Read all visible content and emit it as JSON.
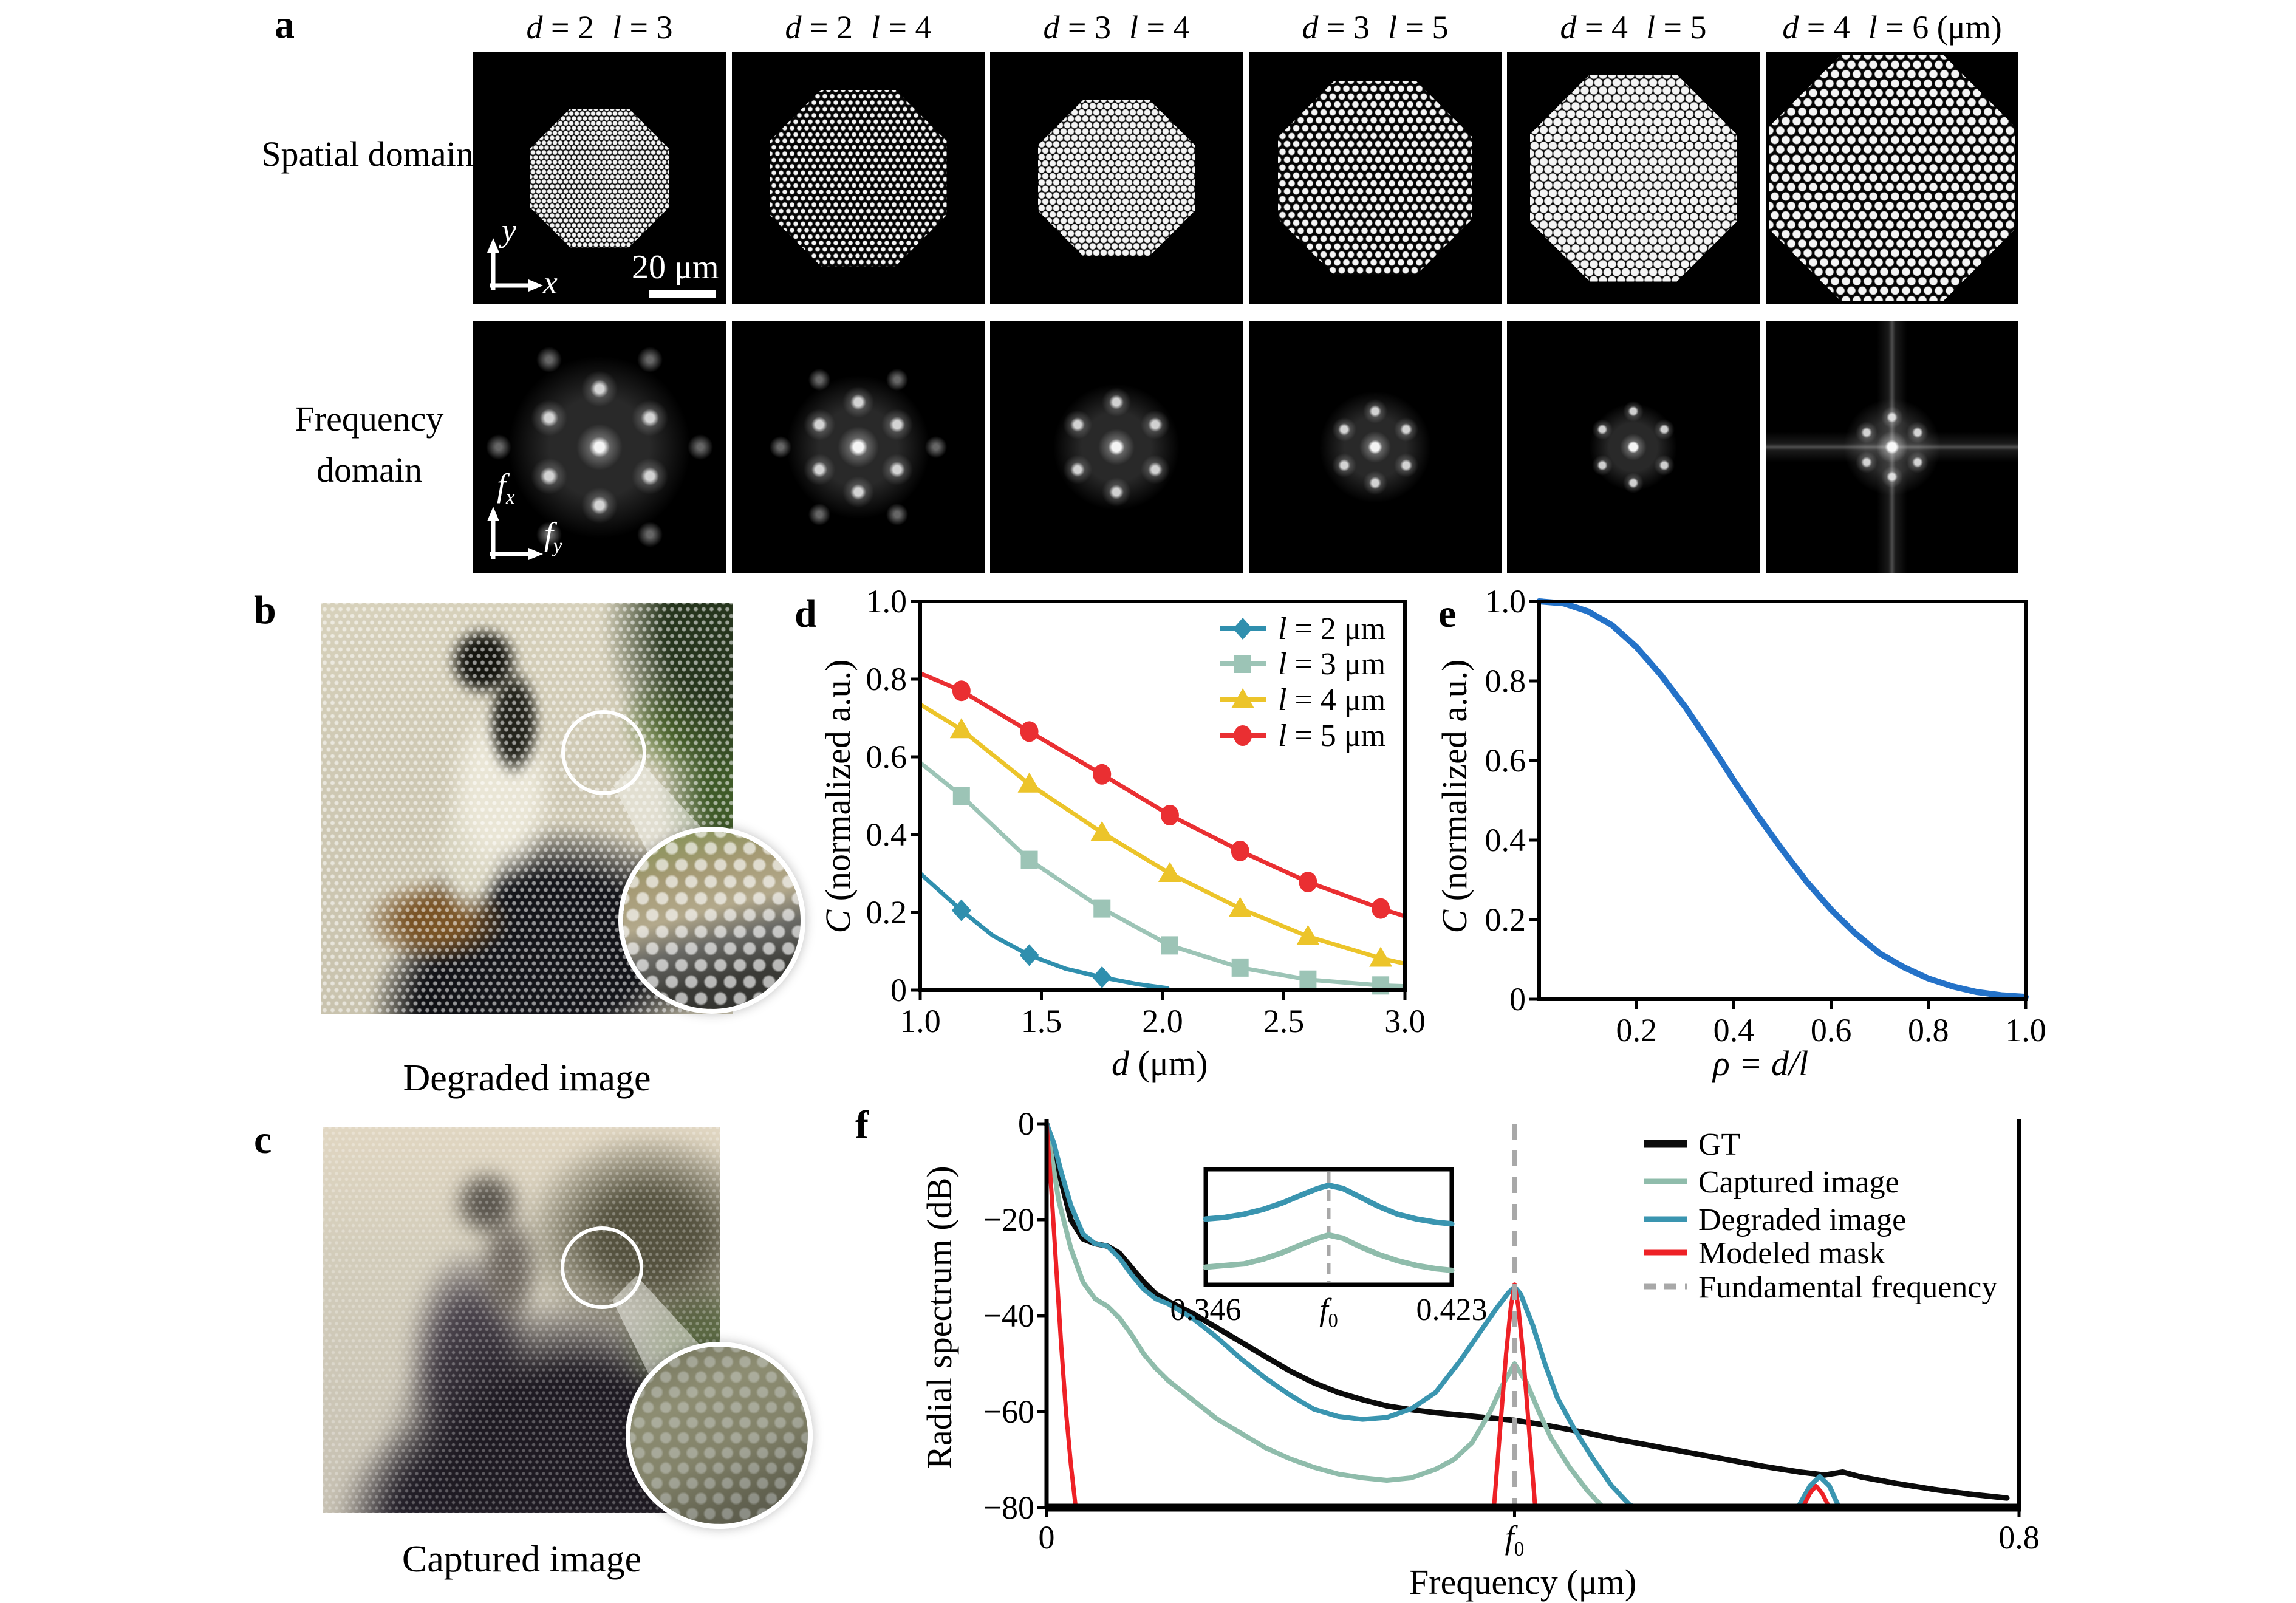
{
  "figure": {
    "panel_a": {
      "letter": "a",
      "columns": [
        {
          "d": "2",
          "l": "3",
          "suffix": ""
        },
        {
          "d": "2",
          "l": "4",
          "suffix": ""
        },
        {
          "d": "3",
          "l": "4",
          "suffix": ""
        },
        {
          "d": "3",
          "l": "5",
          "suffix": ""
        },
        {
          "d": "4",
          "l": "5",
          "suffix": ""
        },
        {
          "d": "4",
          "l": "6",
          "suffix": " (μm)"
        }
      ],
      "row_labels": [
        "Spatial domain",
        "Frequency domain"
      ],
      "spatial_axis_v": "y",
      "spatial_axis_h": "x",
      "freq_axis_v_base": "f",
      "freq_axis_v_sub": "x",
      "freq_axis_h_base": "f",
      "freq_axis_h_sub": "y",
      "scale_bar_label": "20 μm"
    },
    "panel_b": {
      "letter": "b",
      "caption": "Degraded image"
    },
    "panel_c": {
      "letter": "c",
      "caption": "Captured image"
    },
    "panel_d": {
      "letter": "d",
      "xlabel_var": "d",
      "xlabel_rest": " (μm)",
      "ylabel_var": "C",
      "ylabel_rest": " (normalized a.u.)"
    },
    "panel_e": {
      "letter": "e",
      "xlabel_var": "ρ = d/l",
      "xlabel_rest": "",
      "ylabel_var": "C",
      "ylabel_rest": " (normalized a.u.)"
    },
    "panel_f": {
      "letter": "f",
      "xlabel": "Frequency (μm)",
      "ylabel": "Radial spectrum (dB)"
    }
  },
  "chart_data": [
    {
      "id": "d",
      "type": "line",
      "xlabel": "d (μm)",
      "ylabel": "C (normalized a.u.)",
      "xlim": [
        1.0,
        3.0
      ],
      "ylim": [
        0,
        1.0
      ],
      "grid": false,
      "legend_position": "top-right",
      "xtick_vals": [
        1.0,
        1.5,
        2.0,
        2.5,
        3.0
      ],
      "xticks": [
        "1.0",
        "1.5",
        "2.0",
        "2.5",
        "3.0"
      ],
      "ytick_vals": [
        0,
        0.2,
        0.4,
        0.6,
        0.8,
        1.0
      ],
      "yticks": [
        "0",
        "0.2",
        "0.4",
        "0.6",
        "0.8",
        "1.0"
      ],
      "series": [
        {
          "name": "l = 2 μm",
          "color": "#2f8fae",
          "marker": "diamond",
          "x": [
            1.0,
            1.17,
            1.3,
            1.45,
            1.6,
            1.75,
            1.9,
            2.02
          ],
          "y": [
            0.3,
            0.205,
            0.14,
            0.09,
            0.055,
            0.033,
            0.015,
            0.005
          ],
          "mx": [
            1.17,
            1.45,
            1.75
          ],
          "my": [
            0.205,
            0.09,
            0.033
          ]
        },
        {
          "name": "l = 3 μm",
          "color": "#9cc4b6",
          "marker": "square",
          "x": [
            1.0,
            1.17,
            1.45,
            1.75,
            2.03,
            2.32,
            2.6,
            2.9,
            3.0
          ],
          "y": [
            0.585,
            0.5,
            0.335,
            0.21,
            0.115,
            0.058,
            0.027,
            0.012,
            0.01
          ],
          "mx": [
            1.17,
            1.45,
            1.75,
            2.03,
            2.32,
            2.6,
            2.9
          ],
          "my": [
            0.5,
            0.335,
            0.21,
            0.115,
            0.058,
            0.027,
            0.012
          ]
        },
        {
          "name": "l = 4 μm",
          "color": "#ecc42a",
          "marker": "triangle",
          "x": [
            1.0,
            1.17,
            1.45,
            1.75,
            2.03,
            2.32,
            2.6,
            2.9,
            3.0
          ],
          "y": [
            0.735,
            0.67,
            0.53,
            0.405,
            0.3,
            0.21,
            0.138,
            0.082,
            0.068
          ],
          "mx": [
            1.17,
            1.45,
            1.75,
            2.03,
            2.32,
            2.6,
            2.9
          ],
          "my": [
            0.67,
            0.53,
            0.405,
            0.3,
            0.21,
            0.138,
            0.082
          ]
        },
        {
          "name": "l = 5 μm",
          "color": "#ea2f32",
          "marker": "circle",
          "x": [
            1.0,
            1.17,
            1.45,
            1.75,
            2.03,
            2.32,
            2.6,
            2.9,
            3.0
          ],
          "y": [
            0.815,
            0.77,
            0.665,
            0.555,
            0.45,
            0.358,
            0.278,
            0.21,
            0.19
          ],
          "mx": [
            1.17,
            1.45,
            1.75,
            2.03,
            2.32,
            2.6,
            2.9
          ],
          "my": [
            0.77,
            0.665,
            0.555,
            0.45,
            0.358,
            0.278,
            0.21
          ]
        }
      ]
    },
    {
      "id": "e",
      "type": "line",
      "xlabel": "ρ = d/l",
      "ylabel": "C (normalized a.u.)",
      "xlim": [
        0,
        1.0
      ],
      "ylim": [
        0,
        1.0
      ],
      "grid": false,
      "xtick_vals": [
        0.2,
        0.4,
        0.6,
        0.8,
        1.0
      ],
      "xticks": [
        "0.2",
        "0.4",
        "0.6",
        "0.8",
        "1.0"
      ],
      "ytick_vals": [
        0,
        0.2,
        0.4,
        0.6,
        0.8,
        1.0
      ],
      "yticks": [
        "0",
        "0.2",
        "0.4",
        "0.6",
        "0.8",
        "1.0"
      ],
      "series": [
        {
          "name": "C vs rho",
          "color": "#2472c8",
          "marker": "none",
          "x": [
            0,
            0.05,
            0.1,
            0.15,
            0.2,
            0.25,
            0.3,
            0.35,
            0.4,
            0.45,
            0.5,
            0.55,
            0.6,
            0.65,
            0.7,
            0.75,
            0.8,
            0.85,
            0.9,
            0.95,
            1.0
          ],
          "y": [
            1.0,
            0.995,
            0.975,
            0.94,
            0.885,
            0.815,
            0.735,
            0.645,
            0.55,
            0.46,
            0.375,
            0.295,
            0.225,
            0.165,
            0.115,
            0.08,
            0.052,
            0.032,
            0.018,
            0.01,
            0.006
          ]
        }
      ]
    },
    {
      "id": "f",
      "type": "line",
      "xlabel": "Frequency (μm)",
      "ylabel": "Radial spectrum (dB)",
      "xlim": [
        0,
        0.8
      ],
      "ylim": [
        -80,
        0
      ],
      "grid": false,
      "legend_position": "top-right",
      "xtick_vals": [
        0,
        0.385,
        0.8
      ],
      "xticks": [
        "0",
        "f₀",
        "0.8"
      ],
      "ytick_vals": [
        0,
        -20,
        -40,
        -60,
        -80
      ],
      "yticks": [
        "0",
        "−20",
        "−40",
        "−60",
        "−80"
      ],
      "fundamental_frequency": 0.385,
      "legend": [
        {
          "label": "GT",
          "color": "#0b0b0b",
          "width": 13,
          "dash": ""
        },
        {
          "label": "Captured image",
          "color": "#8fbcab",
          "width": 9,
          "dash": ""
        },
        {
          "label": "Degraded image",
          "color": "#3a95b0",
          "width": 9,
          "dash": ""
        },
        {
          "label": "Modeled mask",
          "color": "#ee2126",
          "width": 9,
          "dash": ""
        },
        {
          "label": "Fundamental frequency",
          "color": "#a8a8a8",
          "width": 9,
          "dash": "20 14"
        }
      ],
      "series": [
        {
          "name": "GT",
          "color": "#0b0b0b",
          "width": 9,
          "segments": [
            {
              "x": [
                0,
                0.006,
                0.012,
                0.02,
                0.03,
                0.04,
                0.05,
                0.06,
                0.07,
                0.08,
                0.09,
                0.1,
                0.12,
                0.14,
                0.16,
                0.18,
                0.2,
                0.22,
                0.24,
                0.26,
                0.28,
                0.3,
                0.32,
                0.34,
                0.36,
                0.385,
                0.41,
                0.44,
                0.47,
                0.5,
                0.53,
                0.56,
                0.59,
                0.62,
                0.64,
                0.655,
                0.67,
                0.7,
                0.73,
                0.76,
                0.79
              ],
              "y": [
                0,
                -5,
                -12,
                -20,
                -24,
                -25,
                -25.5,
                -27,
                -30,
                -33,
                -35.5,
                -37,
                -39.5,
                -42.5,
                -45.5,
                -48.5,
                -51.5,
                -54,
                -56,
                -57.5,
                -58.8,
                -59.6,
                -60.2,
                -60.7,
                -61.2,
                -61.8,
                -62.8,
                -64.2,
                -65.8,
                -67.2,
                -68.6,
                -70,
                -71.4,
                -72.6,
                -73.2,
                -72.6,
                -73.6,
                -75,
                -76.2,
                -77.2,
                -78
              ]
            }
          ]
        },
        {
          "name": "Captured image",
          "color": "#8fbcab",
          "width": 8,
          "segments": [
            {
              "x": [
                0,
                0.005,
                0.01,
                0.02,
                0.03,
                0.04,
                0.05,
                0.06,
                0.07,
                0.08,
                0.09,
                0.1,
                0.12,
                0.14,
                0.16,
                0.18,
                0.2,
                0.22,
                0.24,
                0.26,
                0.28,
                0.3,
                0.32,
                0.335,
                0.35,
                0.365,
                0.375,
                0.385,
                0.395,
                0.405,
                0.415,
                0.43,
                0.445,
                0.458
              ],
              "y": [
                0,
                -8,
                -16,
                -26,
                -33,
                -36.5,
                -38,
                -40.5,
                -44,
                -48,
                -51,
                -53.5,
                -57.5,
                -61.5,
                -64.5,
                -67.5,
                -69.8,
                -71.6,
                -73,
                -73.8,
                -74.3,
                -73.8,
                -72,
                -70,
                -66.5,
                -60,
                -54.5,
                -50,
                -54,
                -60,
                -65.5,
                -71.5,
                -76.5,
                -80
              ]
            }
          ]
        },
        {
          "name": "Degraded image",
          "color": "#3a95b0",
          "width": 8,
          "segments": [
            {
              "x": [
                0,
                0.006,
                0.012,
                0.02,
                0.03,
                0.04,
                0.05,
                0.06,
                0.07,
                0.08,
                0.09,
                0.1,
                0.12,
                0.14,
                0.16,
                0.18,
                0.2,
                0.22,
                0.24,
                0.26,
                0.28,
                0.3,
                0.32,
                0.34,
                0.355,
                0.37,
                0.38,
                0.385,
                0.39,
                0.4,
                0.41,
                0.42,
                0.435,
                0.45,
                0.465,
                0.48,
                0.487
              ],
              "y": [
                0,
                -4,
                -10,
                -17,
                -23,
                -25,
                -25.5,
                -28,
                -31.5,
                -34.5,
                -36.5,
                -37.5,
                -40.5,
                -44.5,
                -49,
                -53,
                -56.5,
                -59.5,
                -61,
                -61.6,
                -61.2,
                -59.4,
                -56,
                -49.5,
                -44,
                -38.5,
                -35.2,
                -34,
                -35.5,
                -42,
                -50,
                -57,
                -64,
                -70,
                -75.5,
                -79.5,
                -80
              ]
            },
            {
              "x": [
                0.618,
                0.628,
                0.636,
                0.644,
                0.652
              ],
              "y": [
                -80,
                -75.5,
                -73.5,
                -75.5,
                -80
              ]
            }
          ]
        },
        {
          "name": "Modeled mask",
          "color": "#ee2126",
          "width": 7,
          "segments": [
            {
              "x": [
                0,
                0.004,
                0.008,
                0.012,
                0.016,
                0.02,
                0.024
              ],
              "y": [
                0,
                -14,
                -30,
                -46,
                -60,
                -71,
                -80
              ]
            },
            {
              "x": [
                0.368,
                0.373,
                0.378,
                0.382,
                0.385,
                0.388,
                0.392,
                0.397,
                0.402
              ],
              "y": [
                -80,
                -64,
                -48,
                -38,
                -33.5,
                -38,
                -48,
                -64,
                -80
              ]
            },
            {
              "x": [
                0.622,
                0.628,
                0.633,
                0.638,
                0.644
              ],
              "y": [
                -80,
                -77,
                -75.5,
                -77,
                -80
              ]
            }
          ]
        }
      ]
    },
    {
      "id": "f_inset",
      "type": "line",
      "xlim": [
        0.346,
        0.423
      ],
      "ylim": [
        -66,
        -30
      ],
      "xticks": [
        "0.346",
        "f₀",
        "0.423"
      ],
      "xtick_vals": [
        0.346,
        0.3845,
        0.423
      ],
      "fundamental_frequency": 0.3845,
      "series": [
        {
          "name": "Degraded image",
          "color": "#3a95b0",
          "width": 9,
          "x": [
            0.346,
            0.352,
            0.358,
            0.364,
            0.37,
            0.376,
            0.381,
            0.3845,
            0.389,
            0.394,
            0.4,
            0.406,
            0.412,
            0.418,
            0.423
          ],
          "y": [
            -45.5,
            -45,
            -44,
            -42.5,
            -40.5,
            -38,
            -36,
            -35,
            -36,
            -38.5,
            -41.5,
            -44,
            -45.5,
            -46.5,
            -47
          ]
        },
        {
          "name": "Captured image",
          "color": "#8fbcab",
          "width": 9,
          "x": [
            0.346,
            0.352,
            0.358,
            0.364,
            0.37,
            0.376,
            0.381,
            0.3845,
            0.389,
            0.394,
            0.4,
            0.406,
            0.412,
            0.418,
            0.423
          ],
          "y": [
            -60.5,
            -60,
            -59.5,
            -58,
            -56,
            -53.5,
            -51.5,
            -50.5,
            -51.5,
            -54,
            -56.5,
            -58.5,
            -60,
            -61,
            -61.5
          ]
        }
      ]
    }
  ]
}
